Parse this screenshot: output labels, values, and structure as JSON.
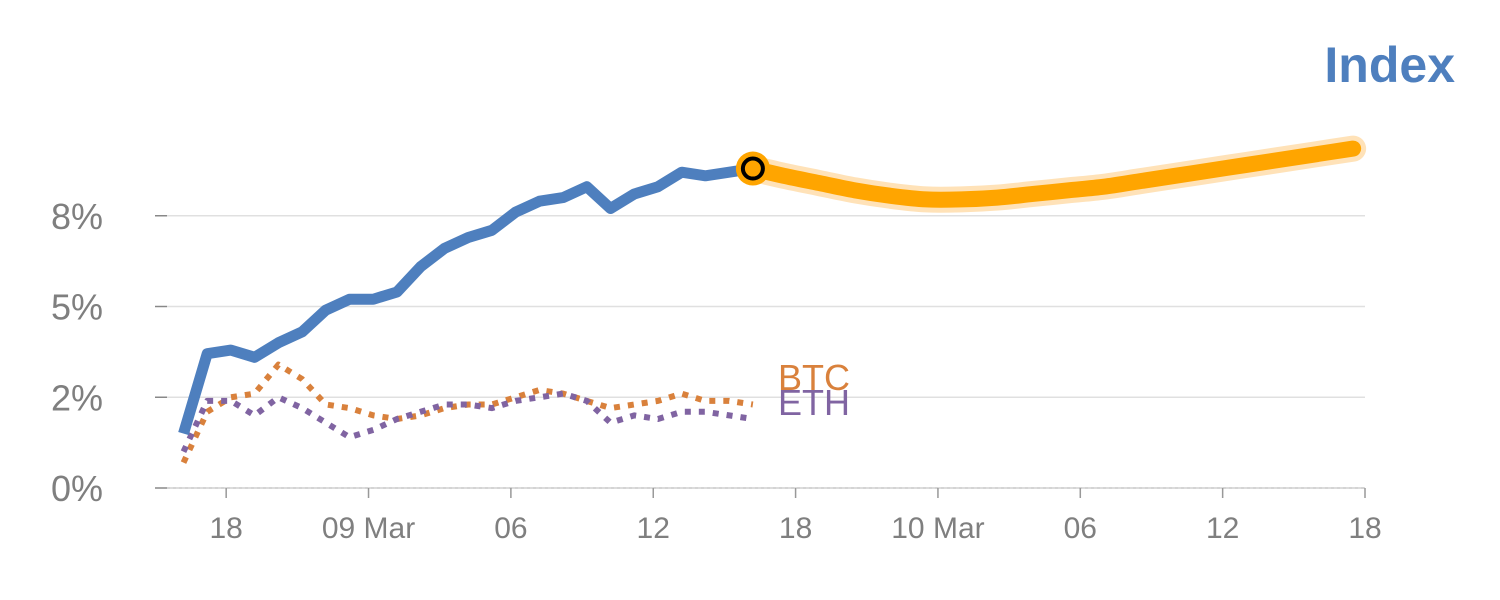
{
  "chart_data": {
    "type": "line",
    "title": "Index",
    "xlabel": "",
    "ylabel": "",
    "ylim": [
      0,
      10
    ],
    "grid": true,
    "y_ticks": [
      {
        "value": 0,
        "label": "0%"
      },
      {
        "value": 2.5,
        "label": "2%"
      },
      {
        "value": 5,
        "label": "5%"
      },
      {
        "value": 7.5,
        "label": "8%"
      }
    ],
    "x_ticks": [
      {
        "value": 3,
        "label": "18"
      },
      {
        "value": 9,
        "label": "09 Mar"
      },
      {
        "value": 15,
        "label": "06"
      },
      {
        "value": 21,
        "label": "12"
      },
      {
        "value": 27,
        "label": "18"
      },
      {
        "value": 33,
        "label": "10 Mar"
      },
      {
        "value": 39,
        "label": "06"
      },
      {
        "value": 45,
        "label": "12"
      },
      {
        "value": 51,
        "label": "18"
      }
    ],
    "x_range": [
      0,
      51
    ],
    "series": [
      {
        "name": "",
        "style": "solid",
        "color": "#4e7fbe",
        "x": [
          1.2,
          2.2,
          3.2,
          4.2,
          5.2,
          6.2,
          7.2,
          8.2,
          9.2,
          10.2,
          11.2,
          12.2,
          13.2,
          14.2,
          15.2,
          16.2,
          17.2,
          18.2,
          19.2,
          20.2,
          21.2,
          22.2,
          23.2,
          24.2,
          25.2
        ],
        "values": [
          1.5,
          3.7,
          3.8,
          3.6,
          4.0,
          4.3,
          4.9,
          5.2,
          5.2,
          5.4,
          6.1,
          6.6,
          6.9,
          7.1,
          7.6,
          7.9,
          8.0,
          8.3,
          7.7,
          8.1,
          8.3,
          8.7,
          8.6,
          8.7,
          8.8
        ]
      },
      {
        "name": "BTC",
        "style": "dotted",
        "color": "#d9813c",
        "x": [
          1.2,
          2.2,
          3.2,
          4.2,
          5.2,
          6.2,
          7.2,
          8.2,
          9.2,
          10.2,
          11.2,
          12.2,
          13.2,
          14.2,
          15.2,
          16.2,
          17.2,
          18.2,
          19.2,
          20.2,
          21.2,
          22.2,
          23.2,
          24.2,
          25.2
        ],
        "values": [
          0.7,
          2.1,
          2.5,
          2.6,
          3.4,
          3.0,
          2.3,
          2.2,
          2.0,
          1.9,
          2.0,
          2.2,
          2.3,
          2.3,
          2.5,
          2.7,
          2.6,
          2.4,
          2.2,
          2.3,
          2.4,
          2.6,
          2.4,
          2.4,
          2.3
        ]
      },
      {
        "name": "ETH",
        "style": "dotted",
        "color": "#8064a2",
        "x": [
          1.2,
          2.2,
          3.2,
          4.2,
          5.2,
          6.2,
          7.2,
          8.2,
          9.2,
          10.2,
          11.2,
          12.2,
          13.2,
          14.2,
          15.2,
          16.2,
          17.2,
          18.2,
          19.2,
          20.2,
          21.2,
          22.2,
          23.2,
          24.2,
          25.2
        ],
        "values": [
          1.0,
          2.4,
          2.4,
          2.0,
          2.5,
          2.2,
          1.8,
          1.4,
          1.6,
          1.9,
          2.1,
          2.3,
          2.3,
          2.2,
          2.4,
          2.5,
          2.6,
          2.4,
          1.8,
          2.0,
          1.9,
          2.1,
          2.1,
          2.0,
          1.9
        ]
      },
      {
        "name": "",
        "style": "solid",
        "color": "#ffa500",
        "x": [
          25.2,
          26.5,
          28,
          29.5,
          31,
          32.5,
          34,
          35.5,
          37,
          38.5,
          40,
          41.5,
          43,
          44.5,
          46,
          47.5,
          49,
          50.5
        ],
        "values": [
          8.8,
          8.6,
          8.4,
          8.2,
          8.05,
          7.95,
          7.95,
          8.0,
          8.1,
          8.2,
          8.3,
          8.45,
          8.6,
          8.75,
          8.9,
          9.05,
          9.2,
          9.35
        ]
      }
    ],
    "marker": {
      "x": 25.2,
      "value": 8.8,
      "fill": "#ffa500",
      "ring": "#000000"
    },
    "colors": {
      "title": "#4e7fbe",
      "grid": "#e0e0e0",
      "axis": "#d0d0d0",
      "tick_text": "#7f7f7f",
      "forecast_halo": "#ffd8a0"
    }
  }
}
